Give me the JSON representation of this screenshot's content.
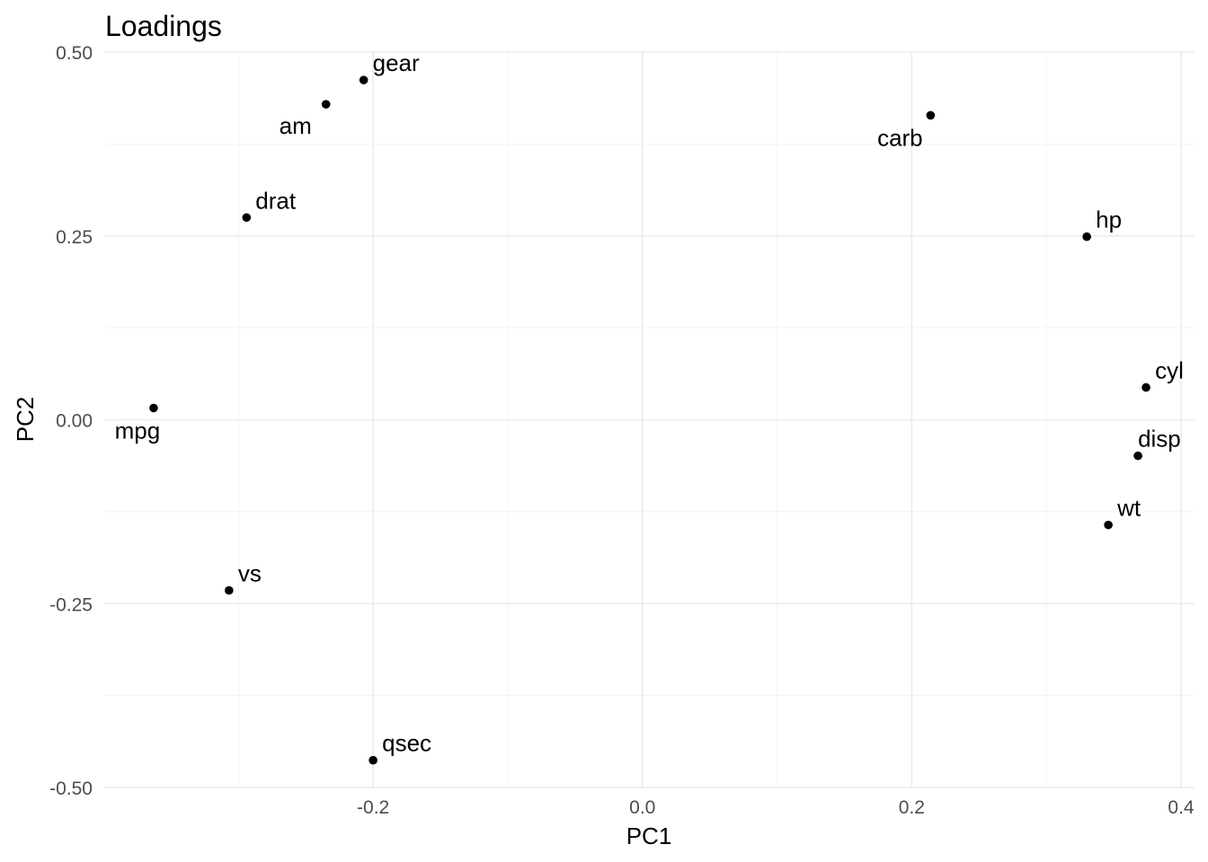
{
  "chart_data": {
    "type": "scatter",
    "title": "Loadings",
    "xlabel": "PC1",
    "ylabel": "PC2",
    "xlim": [
      -0.399,
      0.41
    ],
    "ylim": [
      -0.5,
      0.5
    ],
    "x_ticks": [
      -0.2,
      0.0,
      0.2,
      0.4
    ],
    "x_tick_labels": [
      "-0.2",
      "0.0",
      "0.2",
      "0.4"
    ],
    "y_ticks": [
      -0.5,
      -0.25,
      0.0,
      0.25,
      0.5
    ],
    "y_tick_labels": [
      "-0.50",
      "-0.25",
      "0.00",
      "0.25",
      "0.50"
    ],
    "grid": true,
    "legend": "none",
    "point_color": "#000000",
    "points": [
      {
        "label": "mpg",
        "x": -0.363,
        "y": 0.016
      },
      {
        "label": "cyl",
        "x": 0.374,
        "y": 0.044
      },
      {
        "label": "disp",
        "x": 0.368,
        "y": -0.049
      },
      {
        "label": "hp",
        "x": 0.33,
        "y": 0.249
      },
      {
        "label": "drat",
        "x": -0.294,
        "y": 0.275
      },
      {
        "label": "wt",
        "x": 0.346,
        "y": -0.143
      },
      {
        "label": "qsec",
        "x": -0.2,
        "y": -0.463
      },
      {
        "label": "vs",
        "x": -0.307,
        "y": -0.232
      },
      {
        "label": "am",
        "x": -0.235,
        "y": 0.429
      },
      {
        "label": "gear",
        "x": -0.207,
        "y": 0.462
      },
      {
        "label": "carb",
        "x": 0.214,
        "y": 0.414
      }
    ]
  }
}
